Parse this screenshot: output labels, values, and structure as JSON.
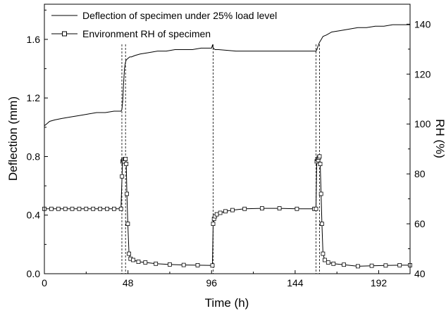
{
  "chart_data": {
    "type": "line",
    "title": "",
    "xlabel": "Time (h)",
    "ylabel_left": "Deflection (mm)",
    "ylabel_right": "RH (%)",
    "xlim": [
      0,
      210
    ],
    "ylim_left": [
      0,
      1.84
    ],
    "ylim_right": [
      40,
      148
    ],
    "xticks": [
      0,
      48,
      96,
      144,
      192
    ],
    "yticks_left": [
      0.0,
      0.4,
      0.8,
      1.2,
      1.6
    ],
    "yticks_left_labels": [
      "0.0",
      "0.4",
      "0.8",
      "1.2",
      "1.6"
    ],
    "yticks_right": [
      40,
      60,
      80,
      100,
      120,
      140
    ],
    "grid": false,
    "legend_position": "top-left",
    "reference_lines_x": [
      44.5,
      46.6,
      96.9,
      156.0,
      158.0
    ],
    "series": [
      {
        "name": "Deflection of specimen under 25% load level",
        "axis": "left",
        "marker": "none",
        "x": [
          0,
          1,
          3,
          6,
          10,
          15,
          20,
          25,
          30,
          35,
          40,
          44,
          44.5,
          45,
          45.5,
          46,
          46.5,
          47,
          48,
          49,
          50,
          52,
          55,
          60,
          65,
          70,
          75,
          80,
          85,
          90,
          95,
          96,
          96.5,
          97,
          98,
          100,
          110,
          120,
          130,
          140,
          150,
          155,
          156,
          156.5,
          157,
          158,
          159,
          160,
          162,
          165,
          170,
          175,
          180,
          185,
          190,
          195,
          200,
          205,
          210
        ],
        "y": [
          1.01,
          1.02,
          1.04,
          1.05,
          1.06,
          1.07,
          1.08,
          1.09,
          1.1,
          1.1,
          1.11,
          1.11,
          1.12,
          1.18,
          1.3,
          1.4,
          1.44,
          1.46,
          1.47,
          1.48,
          1.48,
          1.49,
          1.5,
          1.51,
          1.52,
          1.52,
          1.53,
          1.53,
          1.53,
          1.54,
          1.54,
          1.54,
          1.56,
          1.54,
          1.53,
          1.53,
          1.52,
          1.52,
          1.52,
          1.52,
          1.52,
          1.52,
          1.52,
          1.53,
          1.55,
          1.58,
          1.6,
          1.62,
          1.63,
          1.65,
          1.66,
          1.67,
          1.68,
          1.68,
          1.69,
          1.69,
          1.7,
          1.7,
          1.7
        ]
      },
      {
        "name": "Environment RH of specimen",
        "axis": "right",
        "marker": "square",
        "x": [
          0,
          4,
          8,
          12,
          16,
          20,
          24,
          28,
          32,
          36,
          40,
          44,
          44.6,
          44.9,
          45.3,
          45.8,
          46.3,
          46.6,
          47.0,
          47.4,
          47.9,
          48.6,
          49.5,
          51,
          54,
          58,
          64,
          72,
          80,
          88,
          96.5,
          96.9,
          97.4,
          98,
          99,
          101,
          104,
          108,
          115,
          125,
          135,
          145,
          155,
          156.0,
          156.4,
          156.8,
          157.2,
          157.6,
          158.0,
          158.4,
          158.9,
          159.4,
          160,
          161,
          163,
          166,
          172,
          180,
          188,
          196,
          204,
          210
        ],
        "y": [
          66,
          66,
          66,
          66,
          66,
          66,
          66,
          66,
          66,
          66,
          66,
          66,
          79,
          85,
          85.5,
          85,
          86,
          86,
          84,
          72,
          60,
          48,
          46,
          45.5,
          44.8,
          44.5,
          44,
          43.7,
          43.5,
          43.4,
          43.3,
          60,
          62,
          63,
          63.8,
          64.4,
          65,
          65.5,
          66,
          66.2,
          66.2,
          66,
          66,
          66,
          85,
          86,
          85.5,
          86.5,
          87,
          84,
          72,
          60,
          48,
          45.5,
          44.5,
          44,
          43.6,
          43,
          43.2,
          43.3,
          43.4,
          43.4
        ]
      }
    ]
  }
}
